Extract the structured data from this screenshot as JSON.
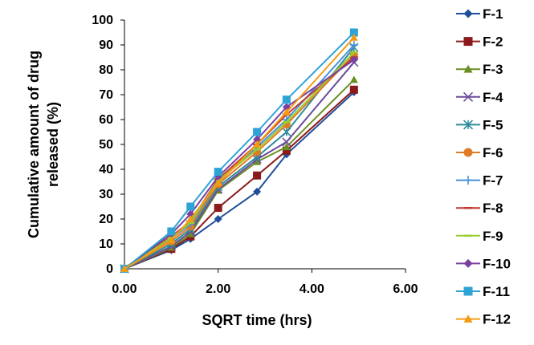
{
  "chart_data": {
    "type": "line",
    "title": "",
    "xlabel": "SQRT time (hrs)",
    "ylabel": "Cumulative amount of drug released (%)",
    "ylabel_lines": [
      "Cumulative amount of drug",
      "released (%)"
    ],
    "xlim": [
      0,
      6
    ],
    "ylim": [
      0,
      100
    ],
    "x_ticks": [
      "0.00",
      "2.00",
      "4.00",
      "6.00"
    ],
    "y_ticks": [
      "0",
      "10",
      "20",
      "30",
      "40",
      "50",
      "60",
      "70",
      "80",
      "90",
      "100"
    ],
    "grid": false,
    "legend_position": "right",
    "x": [
      0,
      1,
      1.41,
      2,
      2.83,
      3.46,
      4.9
    ],
    "series": [
      {
        "name": "F-1",
        "color": "#1f4e9b",
        "marker": "diamond",
        "values": [
          0,
          7.5,
          12,
          20,
          31,
          46,
          71
        ]
      },
      {
        "name": "F-2",
        "color": "#8b1a1a",
        "marker": "square",
        "values": [
          0,
          8,
          13,
          24.5,
          37.5,
          47.5,
          72
        ]
      },
      {
        "name": "F-3",
        "color": "#6b8e23",
        "marker": "triangle",
        "values": [
          0,
          8.5,
          14,
          31.5,
          43,
          49,
          76
        ]
      },
      {
        "name": "F-4",
        "color": "#6a4c9c",
        "marker": "x",
        "values": [
          0,
          9,
          15,
          32,
          44,
          51,
          83
        ]
      },
      {
        "name": "F-5",
        "color": "#2e8b9a",
        "marker": "asterisk",
        "values": [
          0,
          10,
          16,
          33,
          45,
          55,
          89
        ]
      },
      {
        "name": "F-6",
        "color": "#e07b24",
        "marker": "circle",
        "values": [
          0,
          11,
          17,
          34,
          47,
          58,
          86
        ]
      },
      {
        "name": "F-7",
        "color": "#4a90d9",
        "marker": "plus",
        "values": [
          0,
          12,
          18,
          35,
          49,
          60,
          90
        ]
      },
      {
        "name": "F-8",
        "color": "#c0392b",
        "marker": "dash",
        "values": [
          0,
          13,
          19,
          36,
          50,
          62,
          85
        ]
      },
      {
        "name": "F-9",
        "color": "#9acd32",
        "marker": "dash",
        "values": [
          0,
          12.5,
          18.5,
          35.5,
          48,
          59,
          87
        ]
      },
      {
        "name": "F-10",
        "color": "#7b3fa0",
        "marker": "diamond",
        "values": [
          0,
          14,
          22,
          37,
          52,
          65,
          84
        ]
      },
      {
        "name": "F-11",
        "color": "#2ea3d6",
        "marker": "square",
        "values": [
          0,
          15,
          25,
          39,
          55,
          68,
          95
        ]
      },
      {
        "name": "F-12",
        "color": "#f39c12",
        "marker": "triangle",
        "values": [
          0,
          11.5,
          20,
          34.5,
          50,
          63,
          93
        ]
      }
    ]
  }
}
